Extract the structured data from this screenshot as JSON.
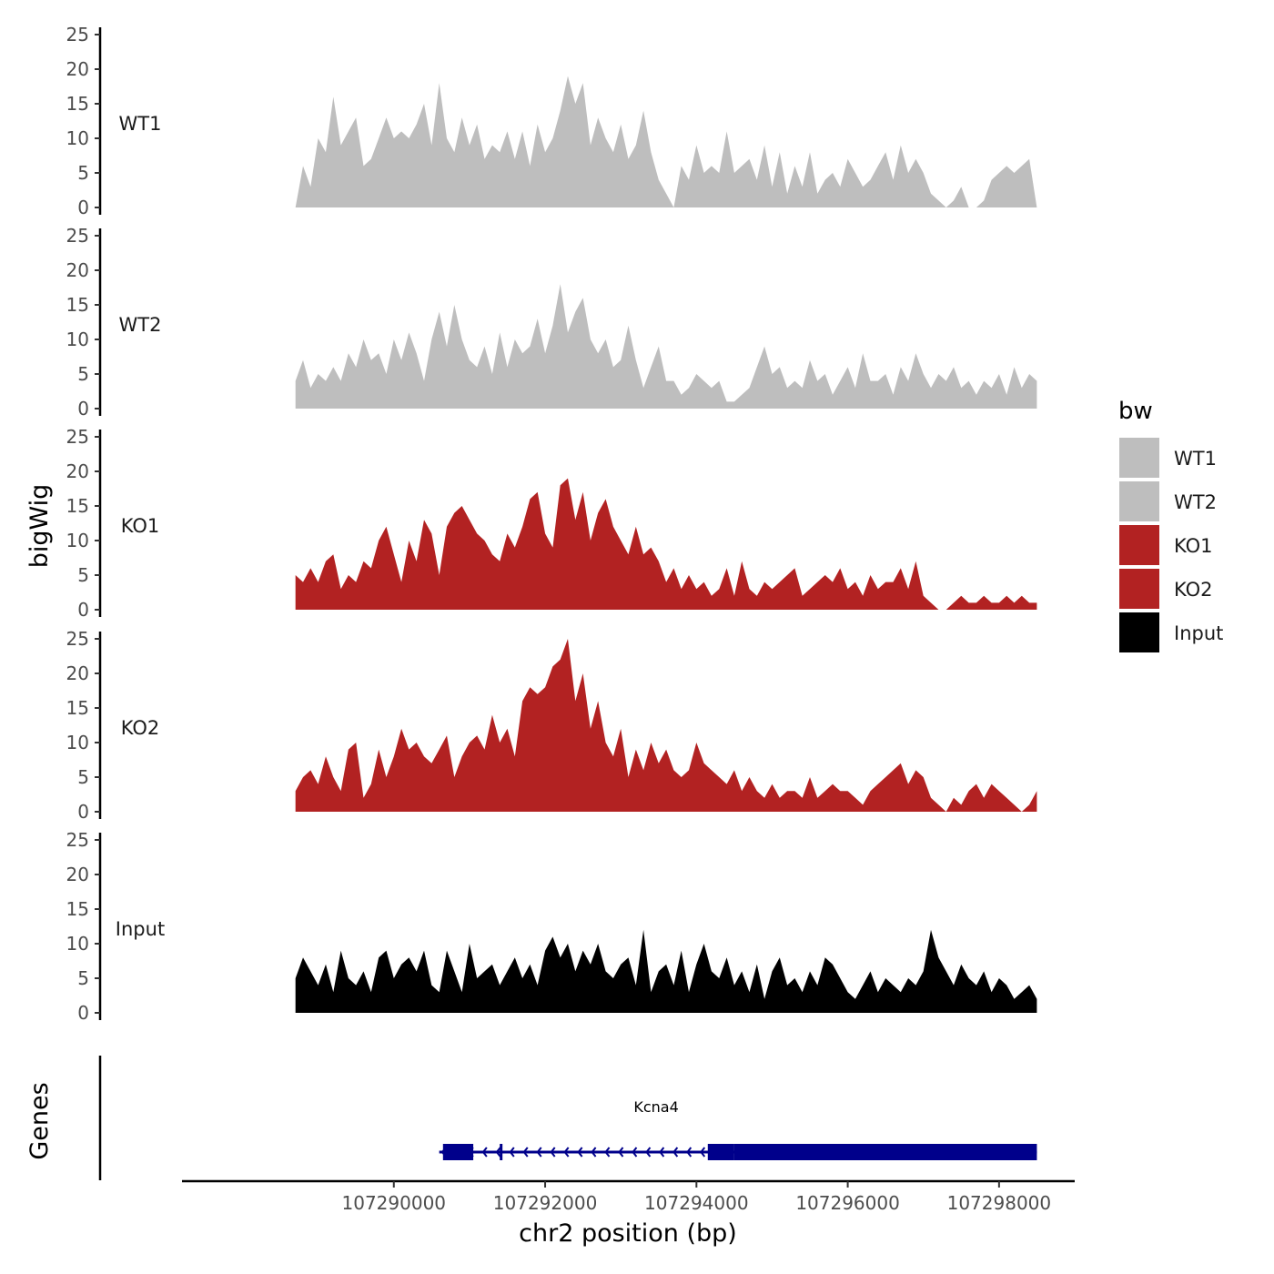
{
  "chart_data": {
    "type": "area",
    "y_axis_title": "bigWig",
    "genes_axis_title": "Genes",
    "xlabel": "chr2 position (bp)",
    "x_tick_labels": [
      "107290000",
      "107292000",
      "107294000",
      "107296000",
      "107298000"
    ],
    "x_ticks": [
      107290000,
      107292000,
      107294000,
      107296000,
      107298000
    ],
    "xlim": [
      107287200,
      107299000
    ],
    "ylim": [
      0,
      25
    ],
    "y_tick_labels": [
      "0",
      "5",
      "10",
      "15",
      "20",
      "25"
    ],
    "y_ticks": [
      0,
      5,
      10,
      15,
      20,
      25
    ],
    "legend": {
      "title": "bw",
      "position": "right",
      "entries": [
        {
          "label": "WT1",
          "color": "#bebebe"
        },
        {
          "label": "WT2",
          "color": "#bebebe"
        },
        {
          "label": "KO1",
          "color": "#b22222"
        },
        {
          "label": "KO2",
          "color": "#b22222"
        },
        {
          "label": "Input",
          "color": "#000000"
        }
      ]
    },
    "series": [
      {
        "name": "WT1",
        "color": "#bebebe",
        "x": [
          107288700,
          107288800,
          107288900,
          107289000,
          107289100,
          107289200,
          107289300,
          107289400,
          107289500,
          107289600,
          107289700,
          107289800,
          107289900,
          107290000,
          107290100,
          107290200,
          107290300,
          107290400,
          107290500,
          107290600,
          107290700,
          107290800,
          107290900,
          107291000,
          107291100,
          107291200,
          107291300,
          107291400,
          107291500,
          107291600,
          107291700,
          107291800,
          107291900,
          107292000,
          107292100,
          107292200,
          107292300,
          107292400,
          107292500,
          107292600,
          107292700,
          107292800,
          107292900,
          107293000,
          107293100,
          107293200,
          107293300,
          107293400,
          107293500,
          107293600,
          107293700,
          107293800,
          107293900,
          107294000,
          107294100,
          107294200,
          107294300,
          107294400,
          107294500,
          107294600,
          107294700,
          107294800,
          107294900,
          107295000,
          107295100,
          107295200,
          107295300,
          107295400,
          107295500,
          107295600,
          107295700,
          107295800,
          107295900,
          107296000,
          107296100,
          107296200,
          107296300,
          107296400,
          107296500,
          107296600,
          107296700,
          107296800,
          107296900,
          107297000,
          107297100,
          107297200,
          107297300,
          107297400,
          107297500,
          107297600,
          107297700,
          107297800,
          107297900,
          107298000,
          107298100,
          107298200,
          107298300,
          107298400,
          107298500
        ],
        "values": [
          0,
          6,
          3,
          10,
          8,
          16,
          9,
          11,
          13,
          6,
          7,
          10,
          13,
          10,
          11,
          10,
          12,
          15,
          9,
          18,
          10,
          8,
          13,
          9,
          12,
          7,
          9,
          8,
          11,
          7,
          11,
          6,
          12,
          8,
          10,
          14,
          19,
          15,
          18,
          9,
          13,
          10,
          8,
          12,
          7,
          9,
          14,
          8,
          4,
          2,
          0,
          6,
          4,
          9,
          5,
          6,
          5,
          11,
          5,
          6,
          7,
          4,
          9,
          3,
          8,
          2,
          6,
          3,
          8,
          2,
          4,
          5,
          3,
          7,
          5,
          3,
          4,
          6,
          8,
          4,
          9,
          5,
          7,
          5,
          2,
          1,
          0,
          1,
          3,
          0,
          0,
          1,
          4,
          5,
          6,
          5,
          6,
          7,
          0
        ]
      },
      {
        "name": "WT2",
        "color": "#bebebe",
        "x": [
          107288700,
          107288800,
          107288900,
          107289000,
          107289100,
          107289200,
          107289300,
          107289400,
          107289500,
          107289600,
          107289700,
          107289800,
          107289900,
          107290000,
          107290100,
          107290200,
          107290300,
          107290400,
          107290500,
          107290600,
          107290700,
          107290800,
          107290900,
          107291000,
          107291100,
          107291200,
          107291300,
          107291400,
          107291500,
          107291600,
          107291700,
          107291800,
          107291900,
          107292000,
          107292100,
          107292200,
          107292300,
          107292400,
          107292500,
          107292600,
          107292700,
          107292800,
          107292900,
          107293000,
          107293100,
          107293200,
          107293300,
          107293400,
          107293500,
          107293600,
          107293700,
          107293800,
          107293900,
          107294000,
          107294100,
          107294200,
          107294300,
          107294400,
          107294500,
          107294600,
          107294700,
          107294800,
          107294900,
          107295000,
          107295100,
          107295200,
          107295300,
          107295400,
          107295500,
          107295600,
          107295700,
          107295800,
          107295900,
          107296000,
          107296100,
          107296200,
          107296300,
          107296400,
          107296500,
          107296600,
          107296700,
          107296800,
          107296900,
          107297000,
          107297100,
          107297200,
          107297300,
          107297400,
          107297500,
          107297600,
          107297700,
          107297800,
          107297900,
          107298000,
          107298100,
          107298200,
          107298300,
          107298400,
          107298500
        ],
        "values": [
          4,
          7,
          3,
          5,
          4,
          6,
          4,
          8,
          6,
          10,
          7,
          8,
          5,
          10,
          7,
          11,
          8,
          4,
          10,
          14,
          9,
          15,
          10,
          7,
          6,
          9,
          5,
          11,
          6,
          10,
          8,
          9,
          13,
          8,
          12,
          18,
          11,
          14,
          16,
          10,
          8,
          10,
          6,
          7,
          12,
          7,
          3,
          6,
          9,
          4,
          4,
          2,
          3,
          5,
          4,
          3,
          4,
          1,
          1,
          2,
          3,
          6,
          9,
          5,
          6,
          3,
          4,
          3,
          7,
          4,
          5,
          2,
          4,
          6,
          3,
          8,
          4,
          4,
          5,
          2,
          6,
          4,
          8,
          5,
          3,
          5,
          4,
          6,
          3,
          4,
          2,
          4,
          3,
          5,
          2,
          6,
          3,
          5,
          4
        ]
      },
      {
        "name": "KO1",
        "color": "#b22222",
        "x": [
          107288700,
          107288800,
          107288900,
          107289000,
          107289100,
          107289200,
          107289300,
          107289400,
          107289500,
          107289600,
          107289700,
          107289800,
          107289900,
          107290000,
          107290100,
          107290200,
          107290300,
          107290400,
          107290500,
          107290600,
          107290700,
          107290800,
          107290900,
          107291000,
          107291100,
          107291200,
          107291300,
          107291400,
          107291500,
          107291600,
          107291700,
          107291800,
          107291900,
          107292000,
          107292100,
          107292200,
          107292300,
          107292400,
          107292500,
          107292600,
          107292700,
          107292800,
          107292900,
          107293000,
          107293100,
          107293200,
          107293300,
          107293400,
          107293500,
          107293600,
          107293700,
          107293800,
          107293900,
          107294000,
          107294100,
          107294200,
          107294300,
          107294400,
          107294500,
          107294600,
          107294700,
          107294800,
          107294900,
          107295000,
          107295100,
          107295200,
          107295300,
          107295400,
          107295500,
          107295600,
          107295700,
          107295800,
          107295900,
          107296000,
          107296100,
          107296200,
          107296300,
          107296400,
          107296500,
          107296600,
          107296700,
          107296800,
          107296900,
          107297000,
          107297100,
          107297200,
          107297300,
          107297400,
          107297500,
          107297600,
          107297700,
          107297800,
          107297900,
          107298000,
          107298100,
          107298200,
          107298300,
          107298400,
          107298500
        ],
        "values": [
          5,
          4,
          6,
          4,
          7,
          8,
          3,
          5,
          4,
          7,
          6,
          10,
          12,
          8,
          4,
          10,
          7,
          13,
          11,
          5,
          12,
          14,
          15,
          13,
          11,
          10,
          8,
          7,
          11,
          9,
          12,
          16,
          17,
          11,
          9,
          18,
          19,
          13,
          17,
          10,
          14,
          16,
          12,
          10,
          8,
          12,
          8,
          9,
          7,
          4,
          6,
          3,
          5,
          3,
          4,
          2,
          3,
          6,
          2,
          7,
          3,
          2,
          4,
          3,
          4,
          5,
          6,
          2,
          3,
          4,
          5,
          4,
          6,
          3,
          4,
          2,
          5,
          3,
          4,
          4,
          6,
          3,
          7,
          2,
          1,
          0,
          0,
          1,
          2,
          1,
          1,
          2,
          1,
          1,
          2,
          1,
          2,
          1,
          1
        ]
      },
      {
        "name": "KO2",
        "color": "#b22222",
        "x": [
          107288700,
          107288800,
          107288900,
          107289000,
          107289100,
          107289200,
          107289300,
          107289400,
          107289500,
          107289600,
          107289700,
          107289800,
          107289900,
          107290000,
          107290100,
          107290200,
          107290300,
          107290400,
          107290500,
          107290600,
          107290700,
          107290800,
          107290900,
          107291000,
          107291100,
          107291200,
          107291300,
          107291400,
          107291500,
          107291600,
          107291700,
          107291800,
          107291900,
          107292000,
          107292100,
          107292200,
          107292300,
          107292400,
          107292500,
          107292600,
          107292700,
          107292800,
          107292900,
          107293000,
          107293100,
          107293200,
          107293300,
          107293400,
          107293500,
          107293600,
          107293700,
          107293800,
          107293900,
          107294000,
          107294100,
          107294200,
          107294300,
          107294400,
          107294500,
          107294600,
          107294700,
          107294800,
          107294900,
          107295000,
          107295100,
          107295200,
          107295300,
          107295400,
          107295500,
          107295600,
          107295700,
          107295800,
          107295900,
          107296000,
          107296100,
          107296200,
          107296300,
          107296400,
          107296500,
          107296600,
          107296700,
          107296800,
          107296900,
          107297000,
          107297100,
          107297200,
          107297300,
          107297400,
          107297500,
          107297600,
          107297700,
          107297800,
          107297900,
          107298000,
          107298100,
          107298200,
          107298300,
          107298400,
          107298500
        ],
        "values": [
          3,
          5,
          6,
          4,
          8,
          5,
          3,
          9,
          10,
          2,
          4,
          9,
          5,
          8,
          12,
          9,
          10,
          8,
          7,
          9,
          11,
          5,
          8,
          10,
          11,
          9,
          14,
          10,
          12,
          8,
          16,
          18,
          17,
          18,
          21,
          22,
          25,
          16,
          20,
          12,
          16,
          10,
          8,
          12,
          5,
          9,
          6,
          10,
          7,
          9,
          6,
          5,
          6,
          10,
          7,
          6,
          5,
          4,
          6,
          3,
          5,
          3,
          2,
          4,
          2,
          3,
          3,
          2,
          5,
          2,
          3,
          4,
          3,
          3,
          2,
          1,
          3,
          4,
          5,
          6,
          7,
          4,
          6,
          5,
          2,
          1,
          0,
          2,
          1,
          3,
          4,
          2,
          4,
          3,
          2,
          1,
          0,
          1,
          3
        ]
      },
      {
        "name": "Input",
        "color": "#000000",
        "x": [
          107288700,
          107288800,
          107288900,
          107289000,
          107289100,
          107289200,
          107289300,
          107289400,
          107289500,
          107289600,
          107289700,
          107289800,
          107289900,
          107290000,
          107290100,
          107290200,
          107290300,
          107290400,
          107290500,
          107290600,
          107290700,
          107290800,
          107290900,
          107291000,
          107291100,
          107291200,
          107291300,
          107291400,
          107291500,
          107291600,
          107291700,
          107291800,
          107291900,
          107292000,
          107292100,
          107292200,
          107292300,
          107292400,
          107292500,
          107292600,
          107292700,
          107292800,
          107292900,
          107293000,
          107293100,
          107293200,
          107293300,
          107293400,
          107293500,
          107293600,
          107293700,
          107293800,
          107293900,
          107294000,
          107294100,
          107294200,
          107294300,
          107294400,
          107294500,
          107294600,
          107294700,
          107294800,
          107294900,
          107295000,
          107295100,
          107295200,
          107295300,
          107295400,
          107295500,
          107295600,
          107295700,
          107295800,
          107295900,
          107296000,
          107296100,
          107296200,
          107296300,
          107296400,
          107296500,
          107296600,
          107296700,
          107296800,
          107296900,
          107297000,
          107297100,
          107297200,
          107297300,
          107297400,
          107297500,
          107297600,
          107297700,
          107297800,
          107297900,
          107298000,
          107298100,
          107298200,
          107298300,
          107298400,
          107298500
        ],
        "values": [
          5,
          8,
          6,
          4,
          7,
          3,
          9,
          5,
          4,
          6,
          3,
          8,
          9,
          5,
          7,
          8,
          6,
          9,
          4,
          3,
          9,
          6,
          3,
          10,
          5,
          6,
          7,
          4,
          6,
          8,
          5,
          7,
          4,
          9,
          11,
          8,
          10,
          6,
          9,
          7,
          10,
          6,
          5,
          7,
          8,
          4,
          12,
          3,
          6,
          7,
          4,
          9,
          3,
          7,
          10,
          6,
          5,
          8,
          4,
          6,
          3,
          7,
          2,
          6,
          8,
          4,
          5,
          3,
          6,
          4,
          8,
          7,
          5,
          3,
          2,
          4,
          6,
          3,
          5,
          4,
          3,
          5,
          4,
          6,
          12,
          8,
          6,
          4,
          7,
          5,
          4,
          6,
          3,
          5,
          4,
          2,
          3,
          4,
          2
        ]
      }
    ],
    "genes": [
      {
        "name": "Kcna4",
        "start": 107290600,
        "end": 107298500,
        "strand": "-",
        "exons": [
          [
            107290650,
            107291050
          ],
          [
            107291400,
            107291430
          ],
          [
            107294150,
            107294500
          ],
          [
            107294500,
            107298500
          ]
        ],
        "color": "#00008b"
      }
    ]
  }
}
